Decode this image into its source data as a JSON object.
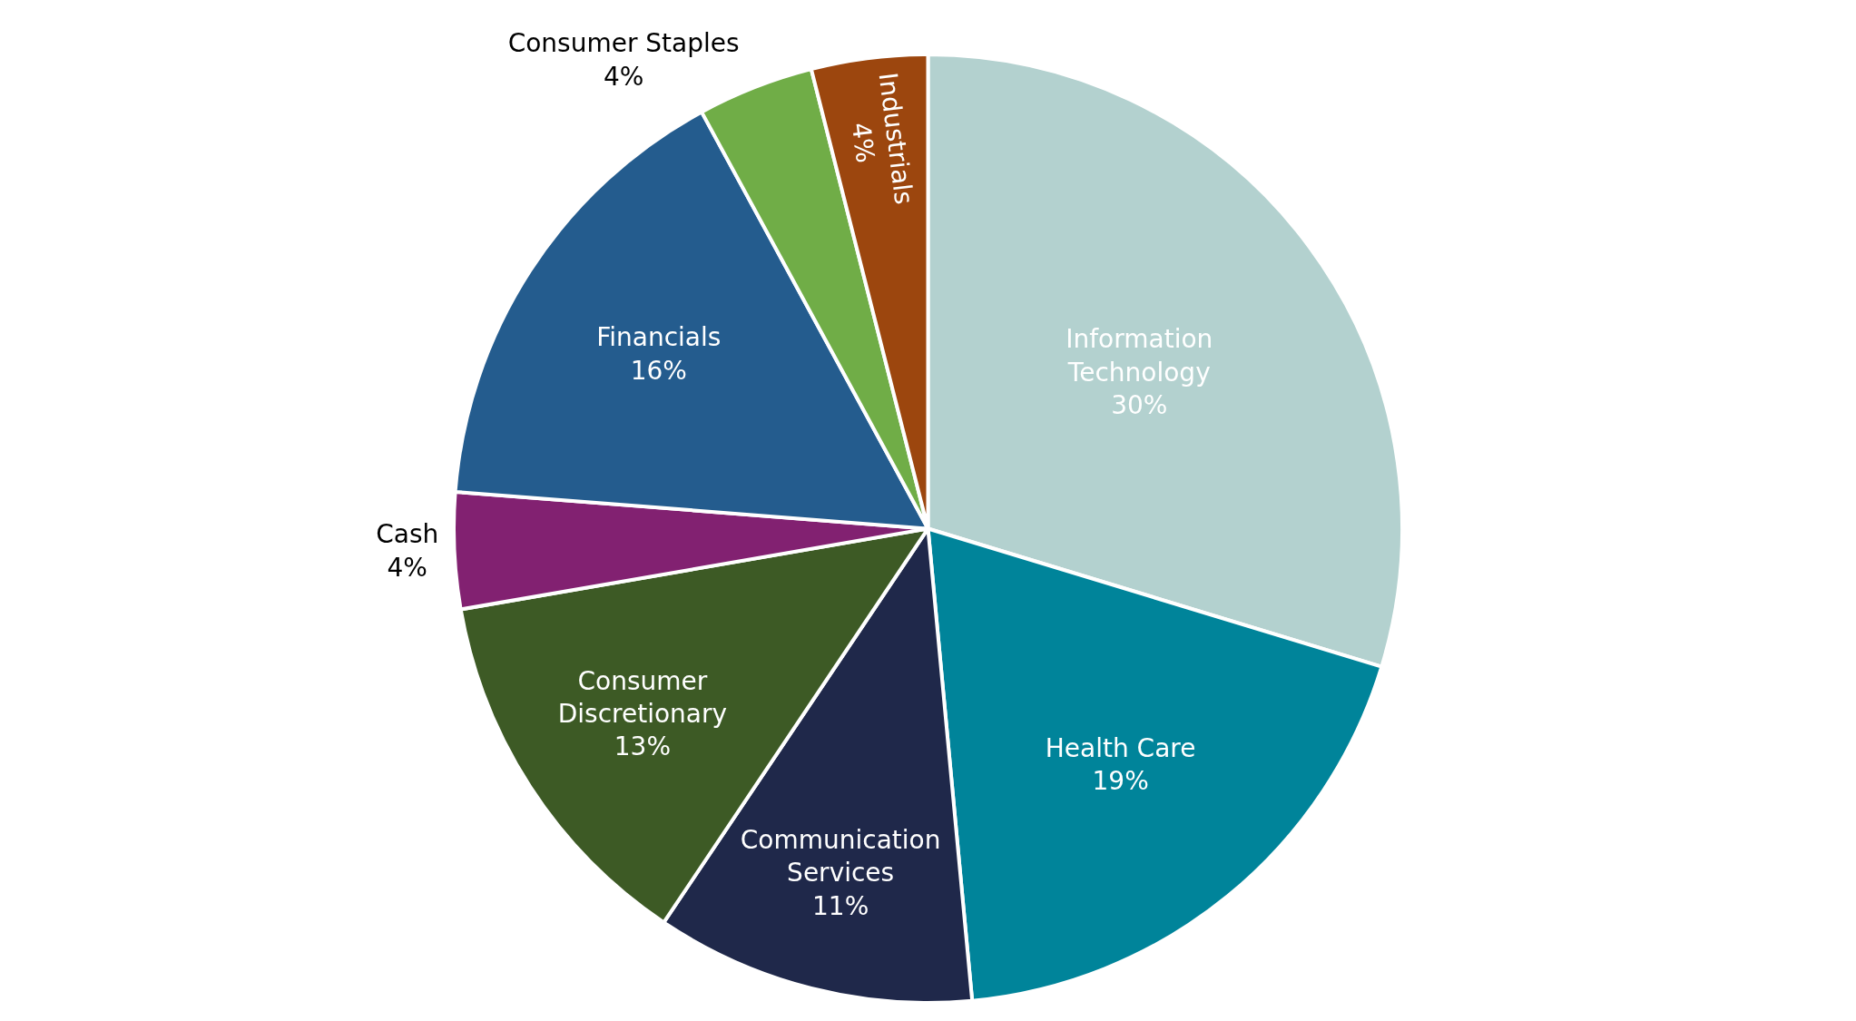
{
  "chart_data": {
    "type": "pie",
    "categories": [
      "Information Technology",
      "Health Care",
      "Communication Services",
      "Consumer Discretionary",
      "Cash",
      "Financials",
      "Consumer Staples",
      "Industrials"
    ],
    "values": [
      30,
      19,
      11,
      13,
      4,
      16,
      4,
      4
    ],
    "value_labels": [
      "30%",
      "19%",
      "11%",
      "13%",
      "4%",
      "16%",
      "4%",
      "4%"
    ],
    "colors": [
      "#b3d1cf",
      "#00849a",
      "#1f284a",
      "#3d5a25",
      "#822171",
      "#245c8e",
      "#70ad47",
      "#9c460e"
    ],
    "legend": false
  }
}
